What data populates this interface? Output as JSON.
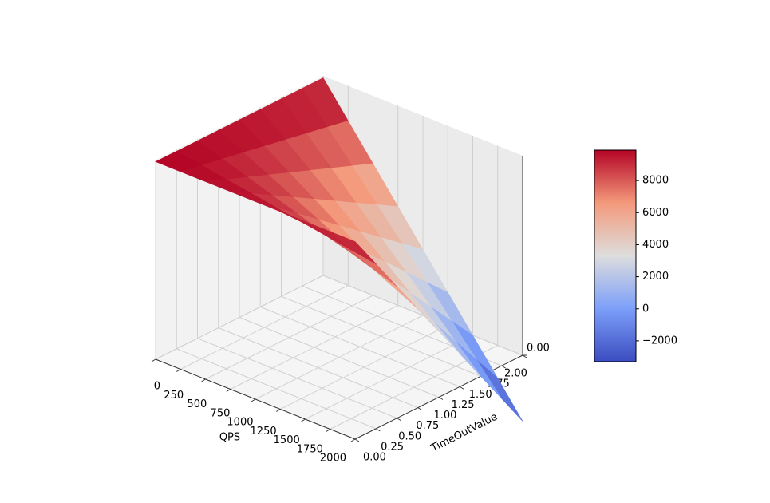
{
  "chart_data": {
    "type": "surface3d",
    "xlabel": "QPS",
    "ylabel": "TimeOutValue",
    "x": [
      0,
      250,
      500,
      750,
      1000,
      1250,
      1500,
      1750,
      2000
    ],
    "y": [
      0,
      0.25,
      0.5,
      0.75,
      1,
      1.25,
      1.5,
      1.75,
      2
    ],
    "z": [
      [
        9900,
        9900,
        9900,
        9900,
        9900,
        9900,
        9900,
        9900,
        9900
      ],
      [
        9900,
        9693.75,
        9487.5,
        9281.25,
        9075,
        8868.75,
        8662.5,
        8456.25,
        8250
      ],
      [
        9900,
        9487.5,
        9075,
        8662.5,
        8250,
        7837.5,
        7425,
        7012.5,
        6600
      ],
      [
        9900,
        9281.25,
        8662.5,
        8043.75,
        7425,
        6806.25,
        6187.5,
        5568.75,
        4950
      ],
      [
        9900,
        9075,
        8250,
        7425,
        6600,
        5775,
        4950,
        4125,
        3300
      ],
      [
        9900,
        8868.75,
        7837.5,
        6806.25,
        5775,
        4743.75,
        3712.5,
        2681.25,
        1650
      ],
      [
        9900,
        8662.5,
        7425,
        6187.5,
        4950,
        3712.5,
        2475,
        1237.5,
        0
      ],
      [
        9900,
        8456.25,
        7012.5,
        5568.75,
        4125,
        2681.25,
        1237.5,
        -206.25,
        -1650
      ],
      [
        9900,
        8250,
        6600,
        4950,
        3300,
        1650,
        0,
        -1650,
        -3300
      ]
    ],
    "colormap": "coolwarm",
    "clim": [
      -3300,
      9900
    ],
    "xlim": [
      0,
      2000
    ],
    "xticks": [
      0,
      250,
      500,
      750,
      1000,
      1250,
      1500,
      1750,
      2000
    ],
    "ylim": [
      0,
      2
    ],
    "yticks": [
      {
        "value": 0,
        "label": "0.00"
      },
      {
        "value": 0.25,
        "label": "0.25"
      },
      {
        "value": 0.5,
        "label": "0.50"
      },
      {
        "value": 0.75,
        "label": "0.75"
      },
      {
        "value": 1,
        "label": "1.00"
      },
      {
        "value": 1.25,
        "label": "1.25"
      },
      {
        "value": 1.5,
        "label": "1.50"
      },
      {
        "value": 1.75,
        "label": "1.75"
      },
      {
        "value": 2,
        "label": "2.00"
      }
    ],
    "zlim": [
      0,
      10000
    ],
    "zticks": [
      {
        "value": 0,
        "label": "0.00"
      }
    ],
    "colorbar_ticks": [
      {
        "value": -2000,
        "label": "−2000"
      },
      0,
      2000,
      4000,
      6000,
      8000
    ],
    "grid": true
  }
}
